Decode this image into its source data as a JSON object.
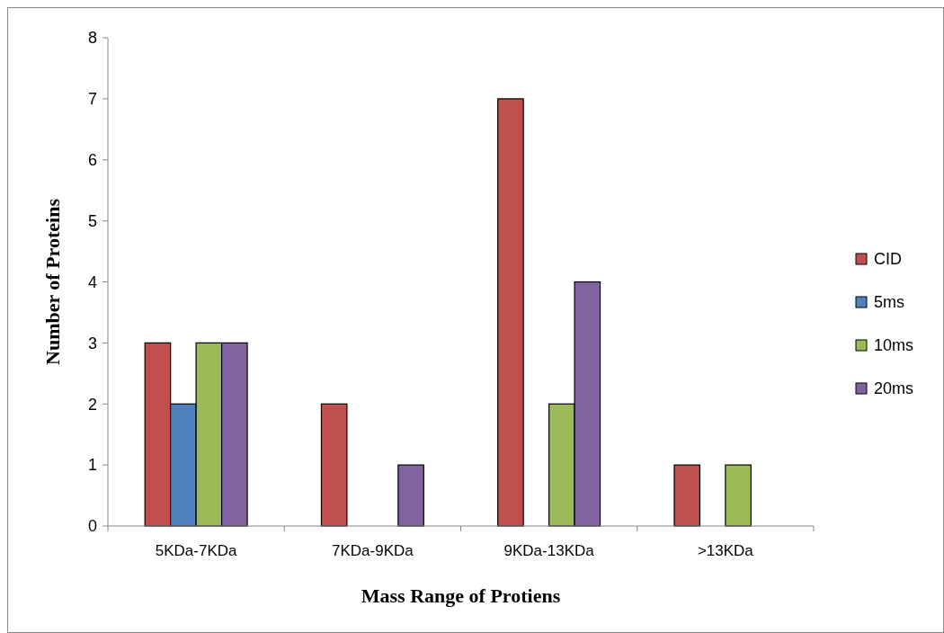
{
  "chart_data": {
    "type": "bar",
    "xlabel": "Mass Range of Protiens",
    "ylabel": "Number of Proteins",
    "categories": [
      "5KDa-7KDa",
      "7KDa-9KDa",
      "9KDa-13KDa",
      ">13KDa"
    ],
    "series": [
      {
        "name": "CID",
        "color": "#c0504d",
        "values": [
          3,
          2,
          7,
          1
        ]
      },
      {
        "name": "5ms",
        "color": "#4f81bd",
        "values": [
          2,
          0,
          0,
          0
        ]
      },
      {
        "name": "10ms",
        "color": "#9bbb59",
        "values": [
          3,
          0,
          2,
          1
        ]
      },
      {
        "name": "20ms",
        "color": "#8064a2",
        "values": [
          3,
          1,
          4,
          0
        ]
      }
    ],
    "ylim": [
      0,
      8
    ],
    "yticks": [
      0,
      1,
      2,
      3,
      4,
      5,
      6,
      7,
      8
    ],
    "grid": false,
    "legend": "right"
  }
}
